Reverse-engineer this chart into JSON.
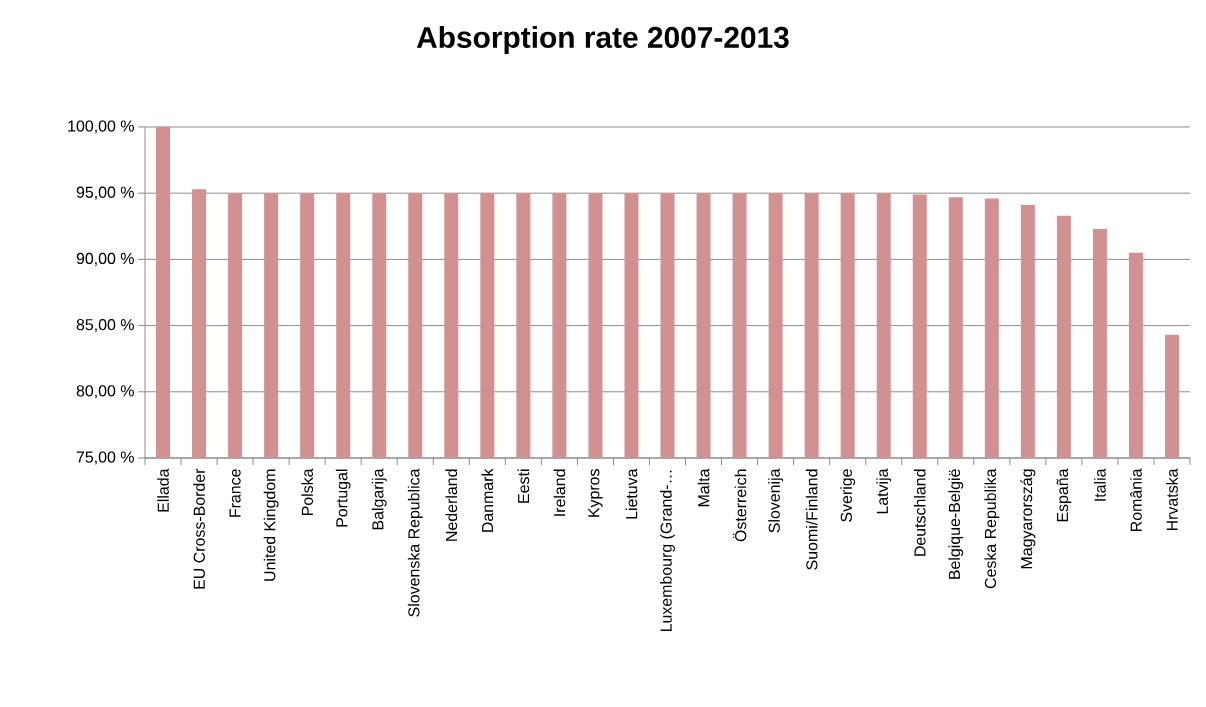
{
  "chart_data": {
    "type": "bar",
    "title": "Absorption rate 2007-2013",
    "categories": [
      "Ellada",
      "EU Cross-Border",
      "France",
      "United Kingdom",
      "Polska",
      "Portugal",
      "Balgarija",
      "Slovenska Republica",
      "Nederland",
      "Danmark",
      "Eesti",
      "Ireland",
      "Kypros",
      "Lietuva",
      "Luxembourg (Grand-…",
      "Malta",
      "Österreich",
      "Slovenija",
      "Suomi/Finland",
      "Sverige",
      "Latvija",
      "Deutschland",
      "Belgique-België",
      "Ceska Republika",
      "Magyarország",
      "España",
      "Italia",
      "România",
      "Hrvatska"
    ],
    "values": [
      100,
      95.3,
      95,
      95,
      95,
      95,
      95,
      95,
      95,
      95,
      95,
      95,
      95,
      95,
      95,
      95,
      95,
      95,
      95,
      95,
      95,
      94.9,
      94.7,
      94.6,
      94.1,
      93.3,
      92.3,
      90.5,
      84.3
    ],
    "color": "#d19191",
    "ylim": [
      75,
      100
    ],
    "yticks": [
      {
        "value": 75,
        "label": "75,00 %"
      },
      {
        "value": 80,
        "label": "80,00 %"
      },
      {
        "value": 85,
        "label": "85,00 %"
      },
      {
        "value": 90,
        "label": "90,00 %"
      },
      {
        "value": 95,
        "label": "95,00 %"
      },
      {
        "value": 100,
        "label": "100,00 %"
      }
    ],
    "grid": "y"
  }
}
